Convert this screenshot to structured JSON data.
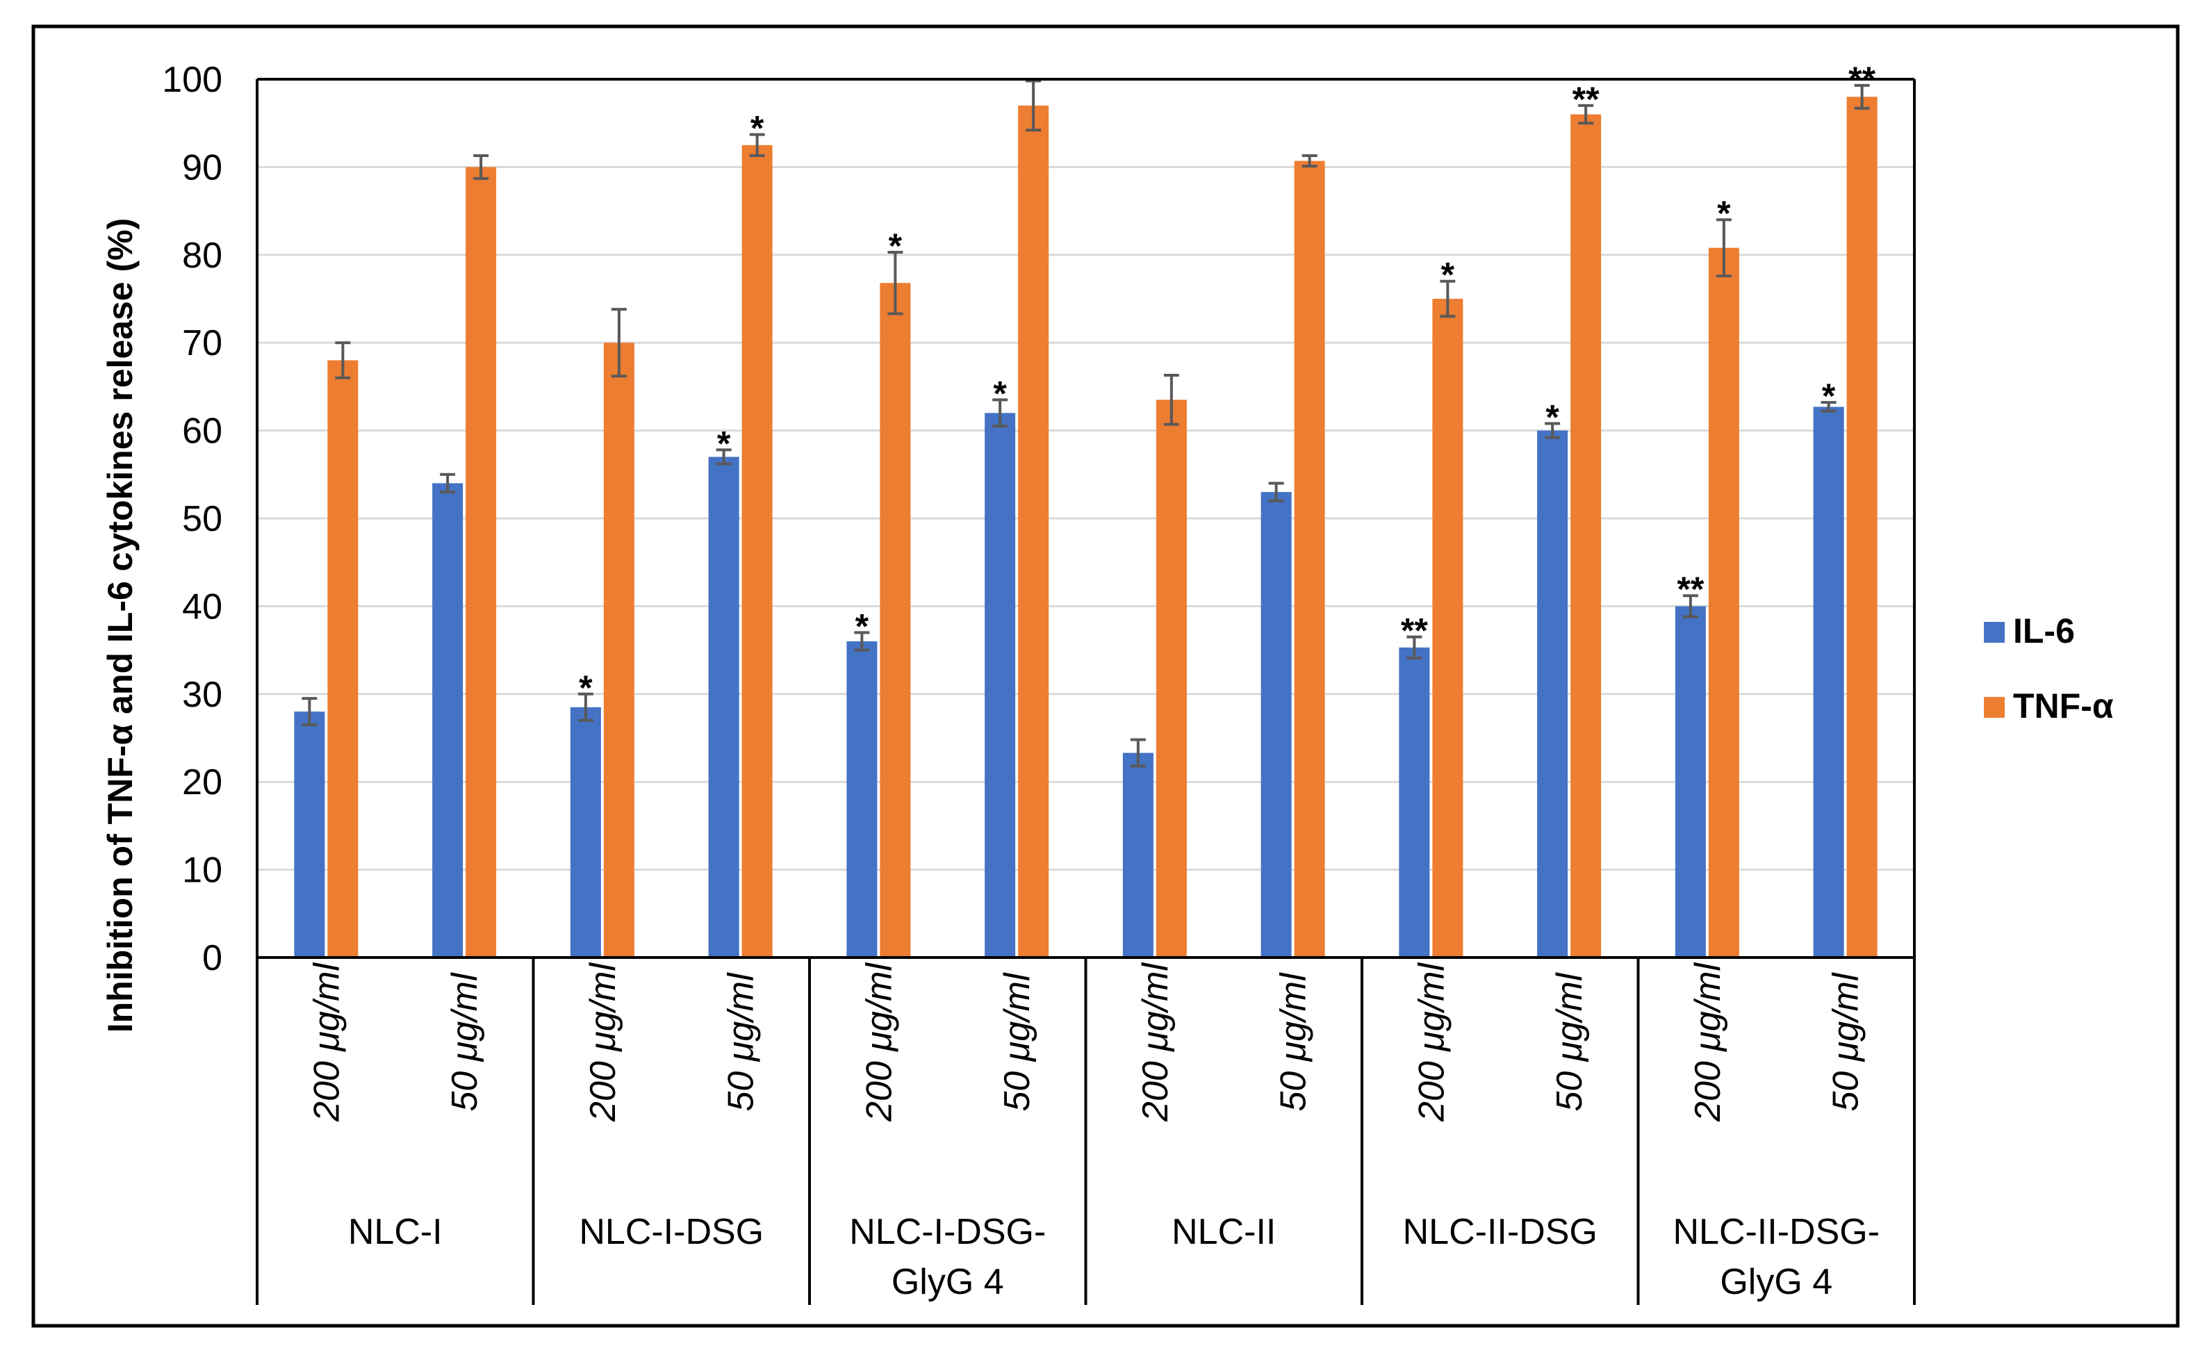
{
  "chart_data": {
    "type": "bar",
    "title": "",
    "xlabel": "",
    "ylabel": "Inhibition of TNF-α and IL-6 cytokines release (%)",
    "ylim": [
      0,
      100
    ],
    "yticks": [
      "0",
      "10",
      "20",
      "30",
      "40",
      "50",
      "60",
      "70",
      "80",
      "90",
      "100"
    ],
    "grid": true,
    "legend_position": "right",
    "groups": [
      {
        "label_lines": [
          "NLC-I"
        ]
      },
      {
        "label_lines": [
          "NLC-I-DSG"
        ]
      },
      {
        "label_lines": [
          "NLC-I-DSG-",
          "GlyG 4"
        ]
      },
      {
        "label_lines": [
          "NLC-II"
        ]
      },
      {
        "label_lines": [
          "NLC-II-DSG"
        ]
      },
      {
        "label_lines": [
          "NLC-II-DSG-",
          "GlyG 4"
        ]
      }
    ],
    "categories": [
      "200 μg/ml",
      "50 μg/ml",
      "200 μg/ml",
      "50 μg/ml",
      "200 μg/ml",
      "50 μg/ml",
      "200 μg/ml",
      "50 μg/ml",
      "200 μg/ml",
      "50 μg/ml",
      "200 μg/ml",
      "50 μg/ml"
    ],
    "series": [
      {
        "name": "IL-6",
        "color": "#4472C4",
        "values": [
          28,
          54,
          28.5,
          57,
          36,
          62,
          23.3,
          53,
          35.3,
          60,
          40,
          62.7
        ],
        "errors": [
          1.5,
          1,
          1.5,
          0.8,
          1,
          1.5,
          1.5,
          1,
          1.2,
          0.8,
          1.2,
          0.5
        ],
        "significance": [
          "",
          "",
          "*",
          "*",
          "*",
          "*",
          "",
          "",
          "**",
          "*",
          "**",
          "*"
        ]
      },
      {
        "name": "TNF-α",
        "color": "#ED7D31",
        "values": [
          68,
          90,
          70,
          92.5,
          76.8,
          97,
          63.5,
          90.7,
          75,
          96,
          80.8,
          98
        ],
        "errors": [
          2,
          1.3,
          3.8,
          1.2,
          3.5,
          2.8,
          2.8,
          0.6,
          2,
          1,
          3.2,
          1.3
        ],
        "significance": [
          "",
          "",
          "",
          "*",
          "*",
          "",
          "",
          "",
          "*",
          "**",
          "*",
          "**"
        ]
      }
    ]
  }
}
